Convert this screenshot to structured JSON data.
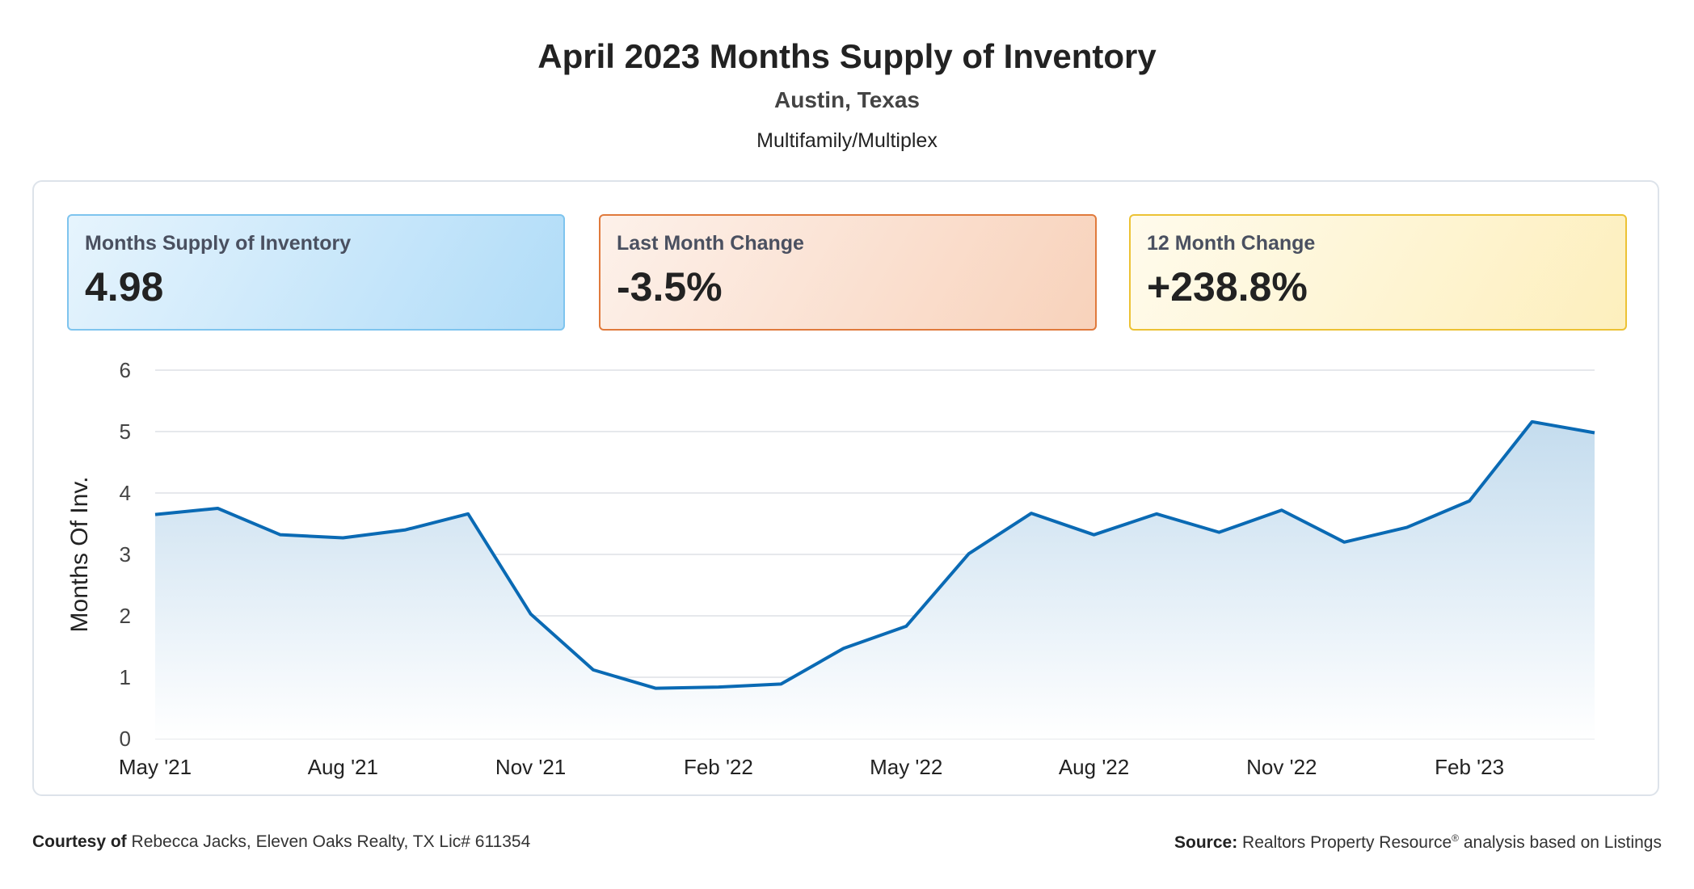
{
  "chart_data": {
    "type": "line",
    "title": "April 2023 Months Supply of Inventory",
    "subtitle": "Austin, Texas",
    "subtitle2": "Multifamily/Multiplex",
    "kpis": [
      {
        "label": "Months Supply of Inventory",
        "value": 4.98
      },
      {
        "label": "Last Month Change",
        "value": "-3.5%"
      },
      {
        "label": "12 Month Change",
        "value": "+238.8%"
      }
    ],
    "y_label": "Months Of Inv.",
    "categories": [
      "May '21",
      null,
      null,
      "Aug '21",
      null,
      null,
      "Nov '21",
      null,
      null,
      "Feb '22",
      null,
      null,
      "May '22",
      null,
      null,
      "Aug '22",
      null,
      null,
      "Nov '22",
      null,
      null,
      "Feb '23",
      null,
      null
    ],
    "series": [
      {
        "name": "Months Supply of Inventory",
        "color": "#0a6ab4",
        "values": [
          3.65,
          3.75,
          3.32,
          3.27,
          3.4,
          3.66,
          2.03,
          1.12,
          0.82,
          0.84,
          0.89,
          1.47,
          1.83,
          3.01,
          3.67,
          3.32,
          3.66,
          3.36,
          3.72,
          3.2,
          3.44,
          3.87,
          5.16,
          4.98
        ]
      }
    ],
    "ylim": [
      0,
      6
    ],
    "yticks": [
      0,
      1,
      2,
      3,
      4,
      5,
      6
    ],
    "grid": true,
    "footer": {
      "courtesy_label": "Courtesy of",
      "courtesy": "Rebecca Jacks, Eleven Oaks Realty, TX Lic# 611354",
      "source_label": "Source:",
      "source": "Realtors Property Resource",
      "source_mark": "®",
      "source_rest": " analysis based on Listings"
    }
  }
}
